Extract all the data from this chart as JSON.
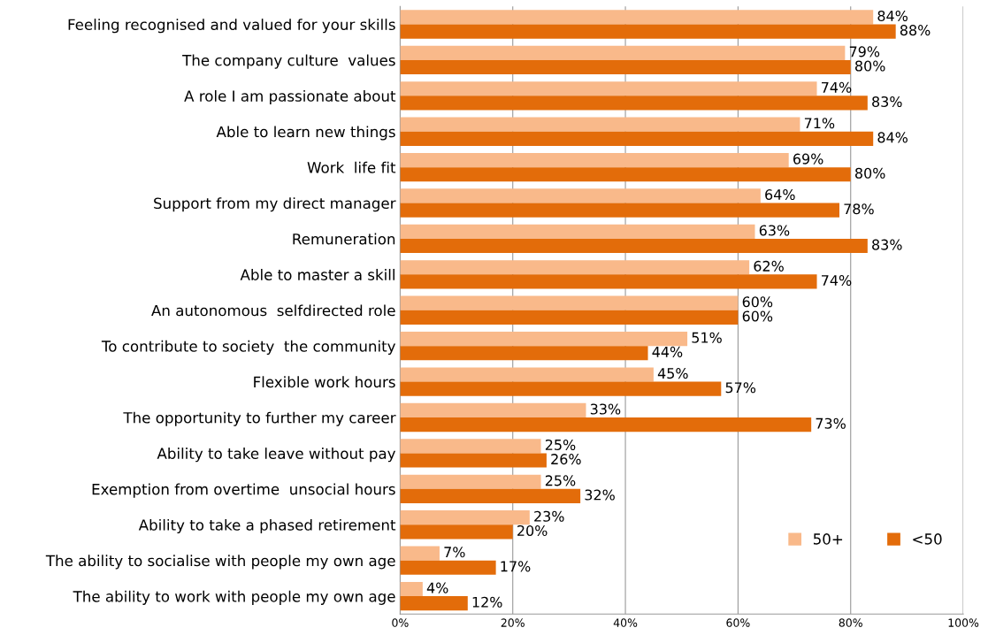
{
  "chart_data": {
    "type": "bar",
    "orientation": "horizontal",
    "categories": [
      "Feeling recognised and valued for your skills",
      "The company culture  values",
      "A role I am passionate about",
      "Able to learn new things",
      "Work  life fit",
      "Support from my direct manager",
      "Remuneration",
      "Able to master a skill",
      "An autonomous  selfdirected role",
      "To contribute to society  the community",
      "Flexible work hours",
      "The opportunity to further my career",
      "Ability to take leave without pay",
      "Exemption from overtime  unsocial hours",
      "Ability to take a phased retirement",
      "The ability to socialise with people my own age",
      "The ability to work with people my own age"
    ],
    "series": [
      {
        "name": "50+",
        "color": "#f9b98a",
        "values": [
          84,
          79,
          74,
          71,
          69,
          64,
          63,
          62,
          60,
          51,
          45,
          33,
          25,
          25,
          23,
          7,
          4
        ],
        "value_labels": [
          "84%",
          "79%",
          "74%",
          "71%",
          "69%",
          "64%",
          "63%",
          "62%",
          "60%",
          "51%",
          "45%",
          "33%",
          "25%",
          "25%",
          "23%",
          "7%",
          "4%"
        ]
      },
      {
        "name": "<50",
        "color": "#e36c0a",
        "values": [
          88,
          80,
          83,
          84,
          80,
          78,
          83,
          74,
          60,
          44,
          57,
          73,
          26,
          32,
          20,
          17,
          12
        ],
        "value_labels": [
          "88%",
          "80%",
          "83%",
          "84%",
          "80%",
          "78%",
          "83%",
          "74%",
          "60%",
          "44%",
          "57%",
          "73%",
          "26%",
          "32%",
          "20%",
          "17%",
          "12%"
        ]
      }
    ],
    "xlim": [
      0,
      100
    ],
    "xticks": [
      {
        "value": 0,
        "label": "0%"
      },
      {
        "value": 20,
        "label": "20%"
      },
      {
        "value": 40,
        "label": "40%"
      },
      {
        "value": 60,
        "label": "60%"
      },
      {
        "value": 80,
        "label": "80%"
      },
      {
        "value": 100,
        "label": "100%"
      }
    ],
    "grid": "x",
    "legend": "bottom right"
  }
}
